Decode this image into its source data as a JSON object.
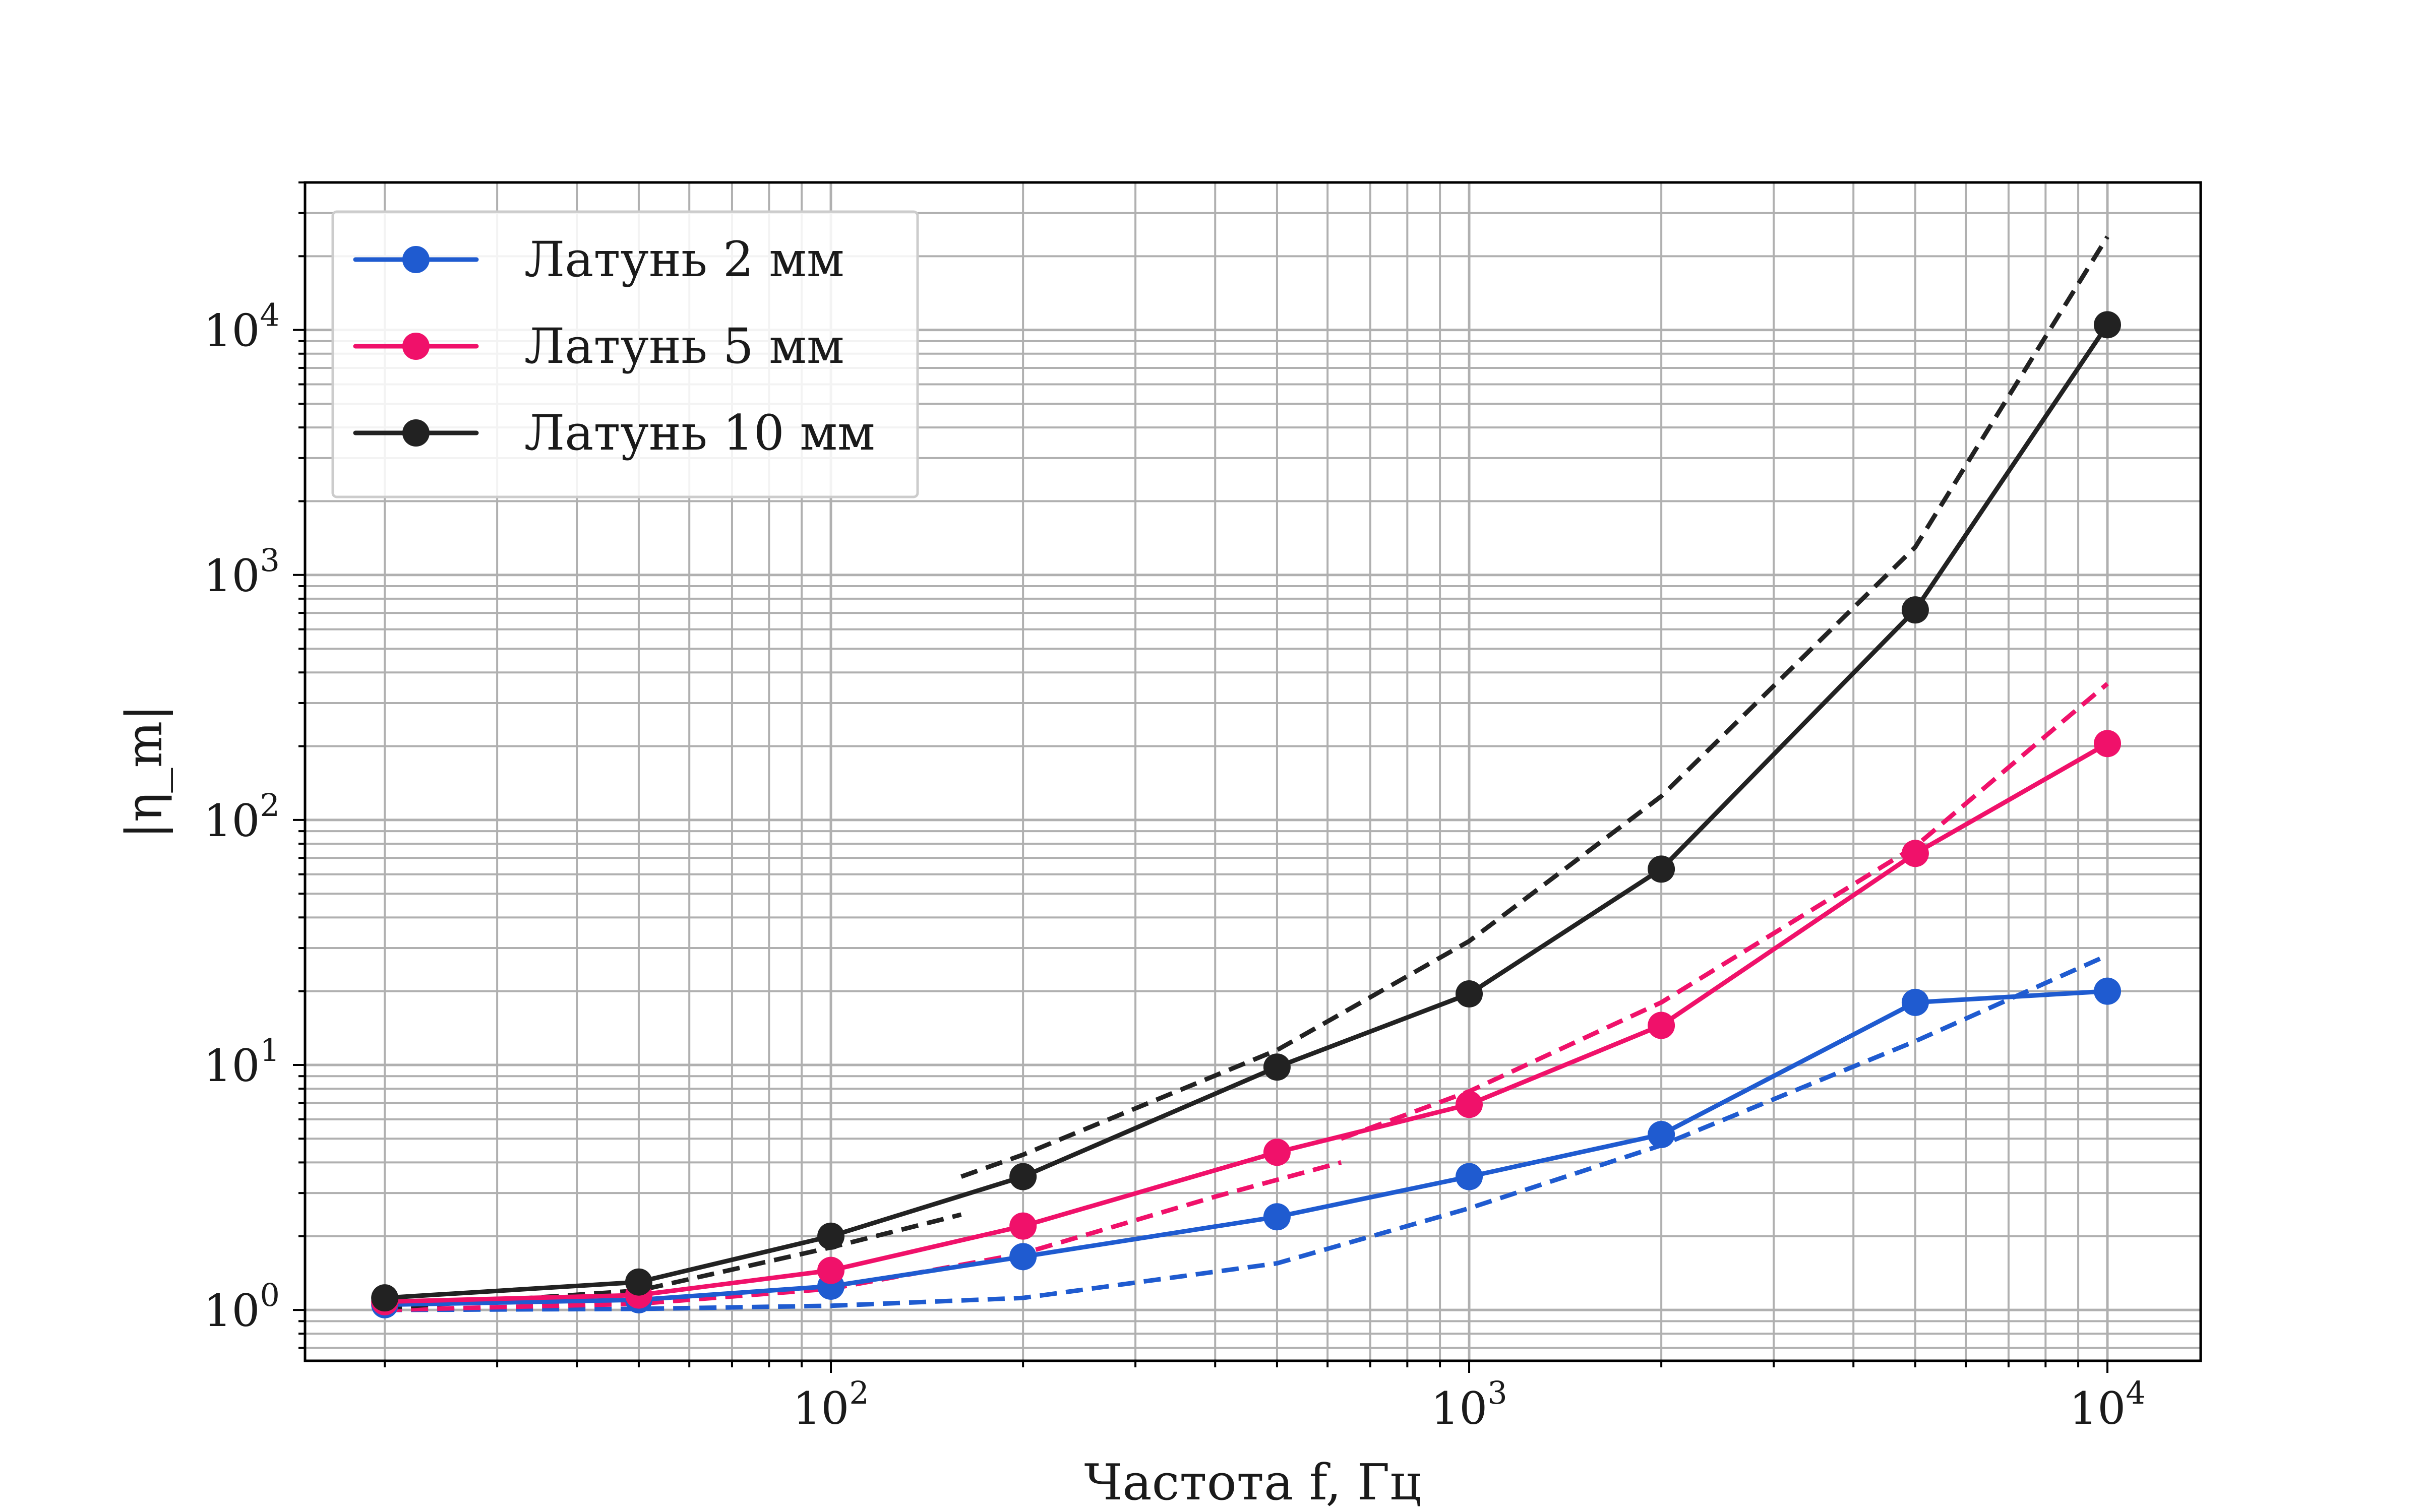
{
  "chart_data": {
    "type": "line",
    "title": "",
    "xlabel": "Частота f, Гц",
    "ylabel": "|η_m|",
    "xscale": "log",
    "yscale": "log",
    "xlim": [
      15,
      14000
    ],
    "ylim": [
      0.62,
      40000
    ],
    "grid": "major and minor",
    "legend_position": "top-left",
    "x_tick_labels": [
      {
        "value": 100,
        "base": "10",
        "exp": "2"
      },
      {
        "value": 1000,
        "base": "10",
        "exp": "3"
      },
      {
        "value": 10000,
        "base": "10",
        "exp": "4"
      }
    ],
    "y_tick_labels": [
      {
        "value": 1,
        "base": "10",
        "exp": "0"
      },
      {
        "value": 10,
        "base": "10",
        "exp": "1"
      },
      {
        "value": 100,
        "base": "10",
        "exp": "2"
      },
      {
        "value": 1000,
        "base": "10",
        "exp": "3"
      },
      {
        "value": 10000,
        "base": "10",
        "exp": "4"
      }
    ],
    "series": [
      {
        "name": "Латунь 2 мм",
        "color": "#1f5bd0",
        "style": "solid-marker",
        "x": [
          20,
          50,
          100,
          200,
          500,
          1000,
          2000,
          5000,
          10000
        ],
        "y": [
          1.05,
          1.1,
          1.25,
          1.65,
          2.4,
          3.5,
          5.2,
          18,
          20
        ]
      },
      {
        "name": "Латунь 5 мм",
        "color": "#f0116a",
        "style": "solid-marker",
        "x": [
          20,
          50,
          100,
          200,
          500,
          1000,
          2000,
          5000,
          10000
        ],
        "y": [
          1.08,
          1.15,
          1.45,
          2.2,
          4.4,
          6.9,
          14.5,
          73,
          205
        ]
      },
      {
        "name": "Латунь 10 мм",
        "color": "#222222",
        "style": "solid-marker",
        "x": [
          20,
          50,
          100,
          200,
          500,
          1000,
          2000,
          5000,
          10000
        ],
        "y": [
          1.12,
          1.3,
          2.0,
          3.5,
          9.8,
          19.5,
          63,
          720,
          10500
        ]
      },
      {
        "color": "#1f5bd0",
        "style": "dashed",
        "x": [
          20,
          50,
          100,
          200,
          500,
          1000,
          2000,
          5000,
          10000
        ],
        "y": [
          1.0,
          1.01,
          1.04,
          1.12,
          1.55,
          2.6,
          4.7,
          12.5,
          28
        ]
      },
      {
        "color": "#f0116a",
        "style": "dashed",
        "x": [
          20,
          50,
          100,
          200,
          400,
          630
        ],
        "y": [
          1.0,
          1.06,
          1.22,
          1.7,
          2.9,
          4.0
        ]
      },
      {
        "color": "#f0116a",
        "style": "dashed",
        "x": [
          630,
          1000,
          2000,
          5000,
          10000
        ],
        "y": [
          5.0,
          7.8,
          18,
          78,
          360
        ]
      },
      {
        "color": "#222222",
        "style": "dashed",
        "x": [
          20,
          50,
          100,
          160
        ],
        "y": [
          1.02,
          1.2,
          1.8,
          2.45
        ]
      },
      {
        "color": "#222222",
        "style": "dashed",
        "x": [
          160,
          200,
          500,
          1000,
          2000,
          5000,
          10000
        ],
        "y": [
          3.5,
          4.3,
          11.5,
          32,
          125,
          1300,
          24000
        ]
      }
    ]
  }
}
